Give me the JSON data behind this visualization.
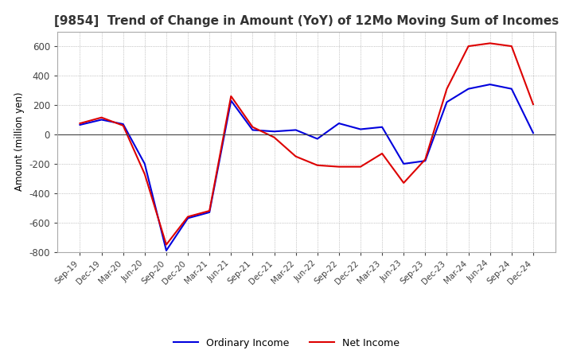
{
  "title": "[9854]  Trend of Change in Amount (YoY) of 12Mo Moving Sum of Incomes",
  "ylabel": "Amount (million yen)",
  "xlabels": [
    "Sep-19",
    "Dec-19",
    "Mar-20",
    "Jun-20",
    "Sep-20",
    "Dec-20",
    "Mar-21",
    "Jun-21",
    "Sep-21",
    "Dec-21",
    "Mar-22",
    "Jun-22",
    "Sep-22",
    "Dec-22",
    "Mar-23",
    "Jun-23",
    "Sep-23",
    "Dec-23",
    "Mar-24",
    "Jun-24",
    "Sep-24",
    "Dec-24"
  ],
  "ordinary_income": [
    65,
    100,
    70,
    -200,
    -790,
    -570,
    -530,
    230,
    30,
    20,
    30,
    -30,
    75,
    35,
    50,
    -200,
    -180,
    220,
    310,
    340,
    310,
    10
  ],
  "net_income": [
    75,
    115,
    60,
    -270,
    -750,
    -560,
    -520,
    260,
    50,
    -20,
    -150,
    -210,
    -220,
    -220,
    -130,
    -330,
    -170,
    310,
    600,
    620,
    600,
    205
  ],
  "ordinary_color": "#0000dd",
  "net_color": "#dd0000",
  "ylim": [
    -800,
    700
  ],
  "yticks": [
    -800,
    -600,
    -400,
    -200,
    0,
    200,
    400,
    600
  ],
  "background_color": "#ffffff",
  "grid_color": "#999999",
  "title_fontsize": 11,
  "legend_ordinary": "Ordinary Income",
  "legend_net": "Net Income"
}
